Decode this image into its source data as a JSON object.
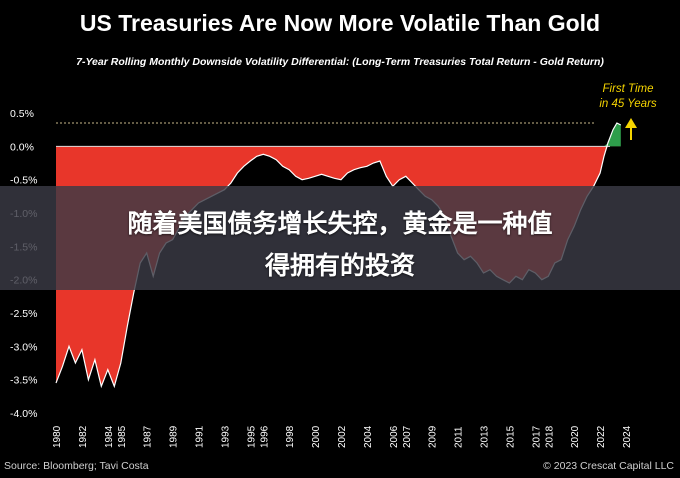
{
  "chart_data": {
    "type": "area",
    "title": "US Treasuries Are Now More Volatile Than Gold",
    "subtitle": "7-Year Rolling Monthly Downside Volatility Differential: (Long-Term Treasuries Total Return - Gold Return)",
    "ylim": [
      -4.0,
      0.5
    ],
    "xlim": [
      1980,
      2024
    ],
    "y_ticks": [
      "0.5%",
      "0.0%",
      "-0.5%",
      "-1.0%",
      "-1.5%",
      "-2.0%",
      "-2.5%",
      "-3.0%",
      "-3.5%",
      "-4.0%"
    ],
    "y_tick_values": [
      0.5,
      0.0,
      -0.5,
      -1.0,
      -1.5,
      -2.0,
      -2.5,
      -3.0,
      -3.5,
      -4.0
    ],
    "x_ticks": [
      "1980",
      "1982",
      "1984",
      "1985",
      "1987",
      "1989",
      "1991",
      "1993",
      "1995",
      "1996",
      "1998",
      "2000",
      "2002",
      "2004",
      "2006",
      "2007",
      "2009",
      "2011",
      "2013",
      "2015",
      "2017",
      "2018",
      "2020",
      "2022",
      "2024"
    ],
    "x_tick_values": [
      1980,
      1982,
      1984,
      1985,
      1987,
      1989,
      1991,
      1993,
      1995,
      1996,
      1998,
      2000,
      2002,
      2004,
      2006,
      2007,
      2009,
      2011,
      2013,
      2015,
      2017,
      2018,
      2020,
      2022,
      2024
    ],
    "x": [
      1980.0,
      1980.5,
      1981.0,
      1981.5,
      1982.0,
      1982.5,
      1983.0,
      1983.5,
      1984.0,
      1984.5,
      1985.0,
      1985.5,
      1986.0,
      1986.5,
      1987.0,
      1987.5,
      1988.0,
      1988.5,
      1989.0,
      1990.0,
      1991.0,
      1992.0,
      1993.0,
      1993.5,
      1994.0,
      1994.5,
      1995.0,
      1995.5,
      1996.0,
      1996.5,
      1997.0,
      1997.5,
      1998.0,
      1998.5,
      1999.0,
      1999.5,
      2000.0,
      2000.5,
      2001.0,
      2001.5,
      2002.0,
      2002.5,
      2003.0,
      2003.5,
      2004.0,
      2004.5,
      2005.0,
      2005.5,
      2006.0,
      2006.5,
      2007.0,
      2007.5,
      2008.0,
      2008.5,
      2009.0,
      2009.5,
      2010.0,
      2010.5,
      2011.0,
      2011.5,
      2012.0,
      2012.5,
      2013.0,
      2013.5,
      2014.0,
      2014.5,
      2015.0,
      2015.5,
      2016.0,
      2016.5,
      2017.0,
      2017.5,
      2018.0,
      2018.5,
      2019.0,
      2019.5,
      2020.0,
      2020.5,
      2021.0,
      2021.5,
      2022.0,
      2022.3,
      2022.6,
      2023.0,
      2023.3,
      2023.6
    ],
    "values": [
      -3.55,
      -3.3,
      -3.0,
      -3.25,
      -3.05,
      -3.5,
      -3.2,
      -3.6,
      -3.35,
      -3.6,
      -3.25,
      -2.7,
      -2.2,
      -1.75,
      -1.6,
      -1.95,
      -1.6,
      -1.45,
      -1.4,
      -1.05,
      -0.85,
      -0.75,
      -0.65,
      -0.55,
      -0.4,
      -0.3,
      -0.22,
      -0.15,
      -0.12,
      -0.15,
      -0.2,
      -0.3,
      -0.35,
      -0.45,
      -0.5,
      -0.48,
      -0.45,
      -0.42,
      -0.45,
      -0.48,
      -0.5,
      -0.4,
      -0.35,
      -0.32,
      -0.3,
      -0.25,
      -0.22,
      -0.45,
      -0.6,
      -0.5,
      -0.45,
      -0.55,
      -0.65,
      -0.75,
      -0.8,
      -0.9,
      -1.05,
      -1.35,
      -1.6,
      -1.7,
      -1.65,
      -1.75,
      -1.9,
      -1.85,
      -1.95,
      -2.0,
      -2.05,
      -1.95,
      -2.0,
      -1.85,
      -1.9,
      -2.0,
      -1.95,
      -1.75,
      -1.7,
      -1.4,
      -1.2,
      -0.95,
      -0.75,
      -0.6,
      -0.4,
      -0.15,
      0.05,
      0.25,
      0.35,
      0.32
    ],
    "reference_level": 0.35,
    "annotation": "First Time in 45 Years",
    "colors": {
      "negative": "#e8362a",
      "positive": "#2e9e4b",
      "line": "#ffffff",
      "reference": "#c9b98a",
      "annotation": "#f5d400"
    }
  },
  "overlay": {
    "line1": "随着美国债务增长失控，黄金是一种值",
    "line2": "得拥有的投资"
  },
  "footer": {
    "source": "Source: Bloomberg; Tavi Costa",
    "copyright": "© 2023 Crescat Capital LLC"
  }
}
